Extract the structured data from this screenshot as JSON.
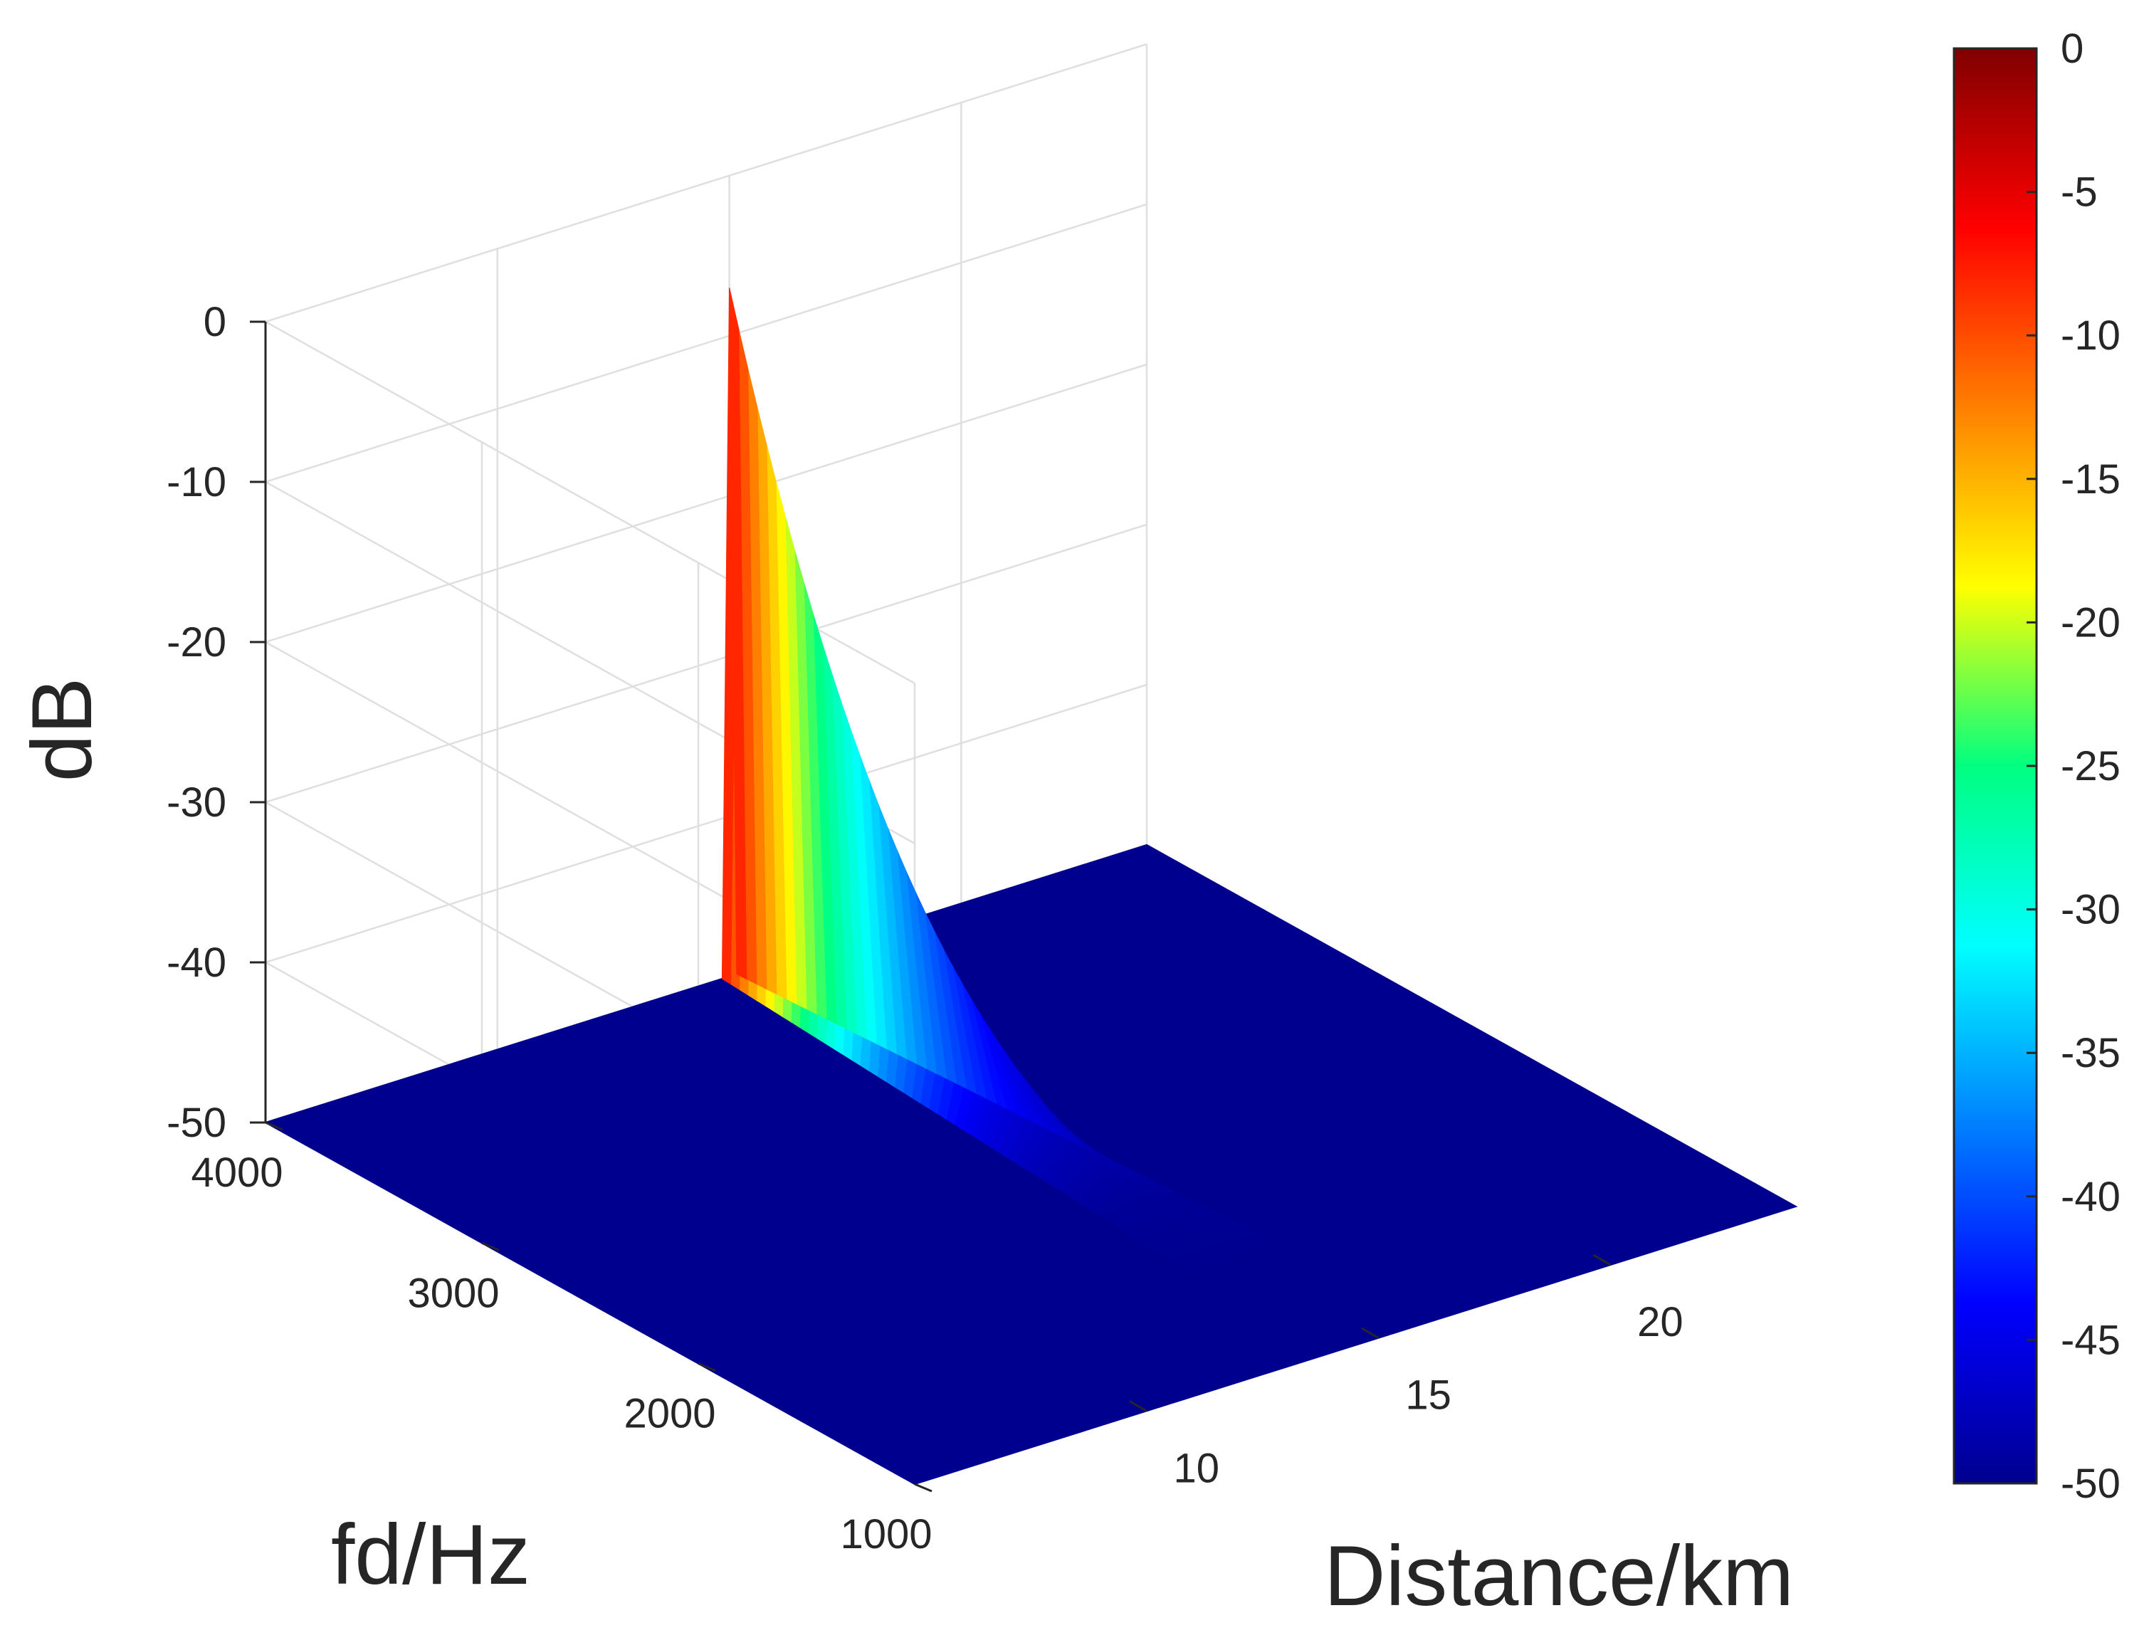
{
  "chart_data": {
    "type": "surface3d",
    "title": "",
    "xlabel": "Distance/km",
    "ylabel": "fd/Hz",
    "zlabel": "dB",
    "x_ticks": [
      10,
      15,
      20
    ],
    "y_ticks": [
      1000,
      2000,
      3000,
      4000
    ],
    "z_ticks": [
      0,
      -10,
      -20,
      -30,
      -40,
      -50
    ],
    "xlim": [
      5,
      24
    ],
    "ylim": [
      1000,
      4000
    ],
    "zlim": [
      -50,
      0
    ],
    "colormap": "jet",
    "colorbar": {
      "range": [
        -50,
        0
      ],
      "ticks": [
        0,
        -5,
        -10,
        -15,
        -20,
        -25,
        -30,
        -35,
        -40,
        -45,
        -50
      ],
      "placement": "right"
    },
    "peak": {
      "distance": 15,
      "fd": 4000,
      "value": -7
    },
    "floor_value": -50,
    "grid": true
  }
}
